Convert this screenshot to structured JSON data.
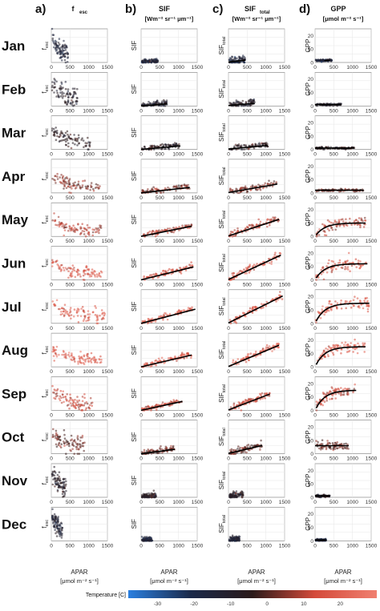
{
  "chart_data": {
    "type": "scatter",
    "months": [
      "Jan",
      "Feb",
      "Mar",
      "Apr",
      "May",
      "Jun",
      "Jul",
      "Aug",
      "Sep",
      "Oct",
      "Nov",
      "Dec"
    ],
    "panels": [
      {
        "letter": "a)",
        "title_main": "f",
        "title_sub": "esc",
        "unit": "",
        "ylabel_main": "f",
        "ylabel_sub": "esc",
        "ylim": [
          0,
          0.5
        ],
        "xlim": [
          0,
          1500
        ],
        "xticks": [
          0,
          500,
          1000,
          1500
        ]
      },
      {
        "letter": "b)",
        "title_main": "SIF",
        "title_sub": "",
        "unit": "[Wm⁻² sr⁻¹ μm⁻¹]",
        "ylabel_main": "SIF",
        "ylabel_sub": "",
        "ylim": [
          0,
          2
        ],
        "xlim": [
          0,
          1500
        ],
        "xticks": [
          0,
          500,
          1000,
          1500
        ]
      },
      {
        "letter": "c)",
        "title_main": "SIF",
        "title_sub": "total",
        "unit": "[Wm⁻² sr⁻¹ μm⁻¹]",
        "ylabel_main": "SIF",
        "ylabel_sub": "total",
        "ylim": [
          0,
          8
        ],
        "xlim": [
          0,
          1500
        ],
        "xticks": [
          0,
          500,
          1000,
          1500
        ]
      },
      {
        "letter": "d)",
        "title_main": "GPP",
        "title_sub": "",
        "unit": "[μmol m⁻² s⁻¹]",
        "ylabel_main": "GPP",
        "ylabel_sub": "",
        "ylim": [
          0,
          25
        ],
        "xlim": [
          0,
          1500
        ],
        "xticks": [
          0,
          500,
          1000,
          1500
        ],
        "yticks": [
          0,
          10,
          20
        ]
      }
    ],
    "xlabel": "APAR",
    "xunit": "[μmol m⁻² s⁻¹]",
    "colorbar": {
      "label": "Temperature [C]",
      "ticks": [
        -30,
        -20,
        -10,
        0,
        10,
        20
      ],
      "range": [
        -38,
        30
      ],
      "colors": [
        "#2a7fe0",
        "#1b2a4a",
        "#2b1a1a",
        "#d44a3a",
        "#f08070"
      ]
    },
    "monthly": [
      {
        "month": "Jan",
        "temp": -15,
        "apar_max": 450,
        "fesc": [
          0.05,
          0.45
        ],
        "sif_slope": 0.00015,
        "sif_total_slope": 0.0012,
        "gpp_line": [
          250,
          400,
          1.5
        ],
        "fit": false
      },
      {
        "month": "Feb",
        "temp": -10,
        "apar_max": 700,
        "fesc": [
          0.05,
          0.45
        ],
        "sif_slope": 0.00018,
        "sif_total_slope": 0.0009,
        "gpp_line": [
          0,
          700,
          1.0
        ],
        "fit": true
      },
      {
        "month": "Mar",
        "temp": -6,
        "apar_max": 1050,
        "fesc": [
          0.05,
          0.35
        ],
        "sif_slope": 0.0002,
        "sif_total_slope": 0.0009,
        "gpp_line": [
          0,
          1050,
          1.0
        ],
        "fit": true
      },
      {
        "month": "Apr",
        "temp": 4,
        "apar_max": 1300,
        "fesc": [
          0.05,
          0.3
        ],
        "sif_slope": 0.00025,
        "sif_total_slope": 0.0016,
        "gpp_line": [
          0,
          1300,
          2.0
        ],
        "fit": true
      },
      {
        "month": "May",
        "temp": 10,
        "apar_max": 1350,
        "fesc": [
          0.05,
          0.3
        ],
        "sif_slope": 0.00045,
        "sif_total_slope": 0.003,
        "gpp_sat": 10,
        "fit": true
      },
      {
        "month": "Jun",
        "temp": 15,
        "apar_max": 1400,
        "fesc": [
          0.05,
          0.3
        ],
        "sif_slope": 0.00055,
        "sif_total_slope": 0.0042,
        "gpp_sat": 12,
        "fit": true
      },
      {
        "month": "Jul",
        "temp": 18,
        "apar_max": 1450,
        "fesc": [
          0.05,
          0.35
        ],
        "sif_slope": 0.00058,
        "sif_total_slope": 0.0045,
        "gpp_sat": 15,
        "fit": true
      },
      {
        "month": "Aug",
        "temp": 17,
        "apar_max": 1350,
        "fesc": [
          0.05,
          0.3
        ],
        "sif_slope": 0.00052,
        "sif_total_slope": 0.0038,
        "gpp_sat": 15,
        "fit": true
      },
      {
        "month": "Sep",
        "temp": 12,
        "apar_max": 1100,
        "fesc": [
          0.05,
          0.35
        ],
        "sif_slope": 0.00048,
        "sif_total_slope": 0.0035,
        "gpp_sat": 15,
        "fit": true
      },
      {
        "month": "Oct",
        "temp": 2,
        "apar_max": 900,
        "fesc": [
          0.05,
          0.4
        ],
        "sif_slope": 0.0003,
        "sif_total_slope": 0.0022,
        "gpp_line": [
          0,
          900,
          6.0
        ],
        "fit": true
      },
      {
        "month": "Nov",
        "temp": -8,
        "apar_max": 400,
        "fesc": [
          0.05,
          0.45
        ],
        "sif_slope": 0.00015,
        "sif_total_slope": 0.0015,
        "gpp_line": [
          0,
          400,
          1.0
        ],
        "fit": false
      },
      {
        "month": "Dec",
        "temp": -14,
        "apar_max": 300,
        "fesc": [
          0.05,
          0.45
        ],
        "sif_slope": 0.0001,
        "sif_total_slope": 0.001,
        "gpp_line": [
          0,
          300,
          0.5
        ],
        "fit": false
      }
    ]
  }
}
